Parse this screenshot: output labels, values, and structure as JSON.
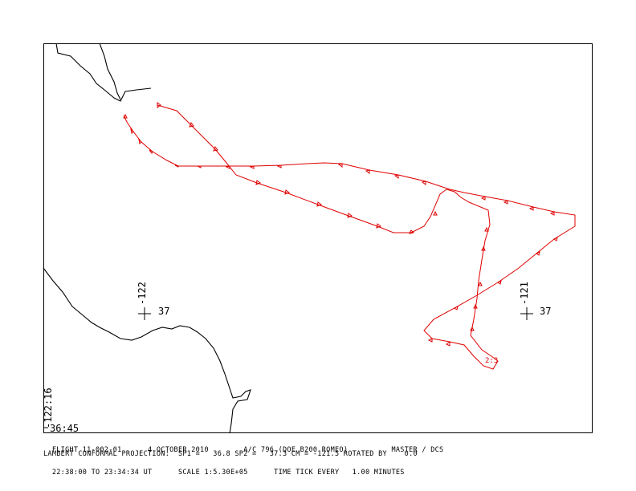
{
  "map": {
    "grid_marks": [
      {
        "lon": "-122",
        "lat": "37"
      },
      {
        "lon": "-121",
        "lat": "37"
      }
    ],
    "corner": {
      "lon": "-122:16",
      "lat": "36:45"
    },
    "time_label": "2:3",
    "colors": {
      "track": "#e00000",
      "coast": "#000000",
      "frame": "#000000"
    }
  },
  "footer": {
    "line1": {
      "flight": "FLIGHT 11-002-01",
      "date": "4 OCTOBER 2010",
      "aircraft": "A/C 796 (DOE B200 ROMEO)",
      "source": "MASTER / DCS"
    },
    "line2": "LAMBERT CONFORMAL PROJECTION:  SP1 =   36.8 SP2 =   37.3 CM = -121.5 ROTATED BY    0.0",
    "line3": {
      "time_range": "22:38:00 TO 23:34:34 UT",
      "scale": "SCALE 1:5.30E+05",
      "tick": "TIME TICK EVERY   1.00 MINUTES"
    }
  }
}
